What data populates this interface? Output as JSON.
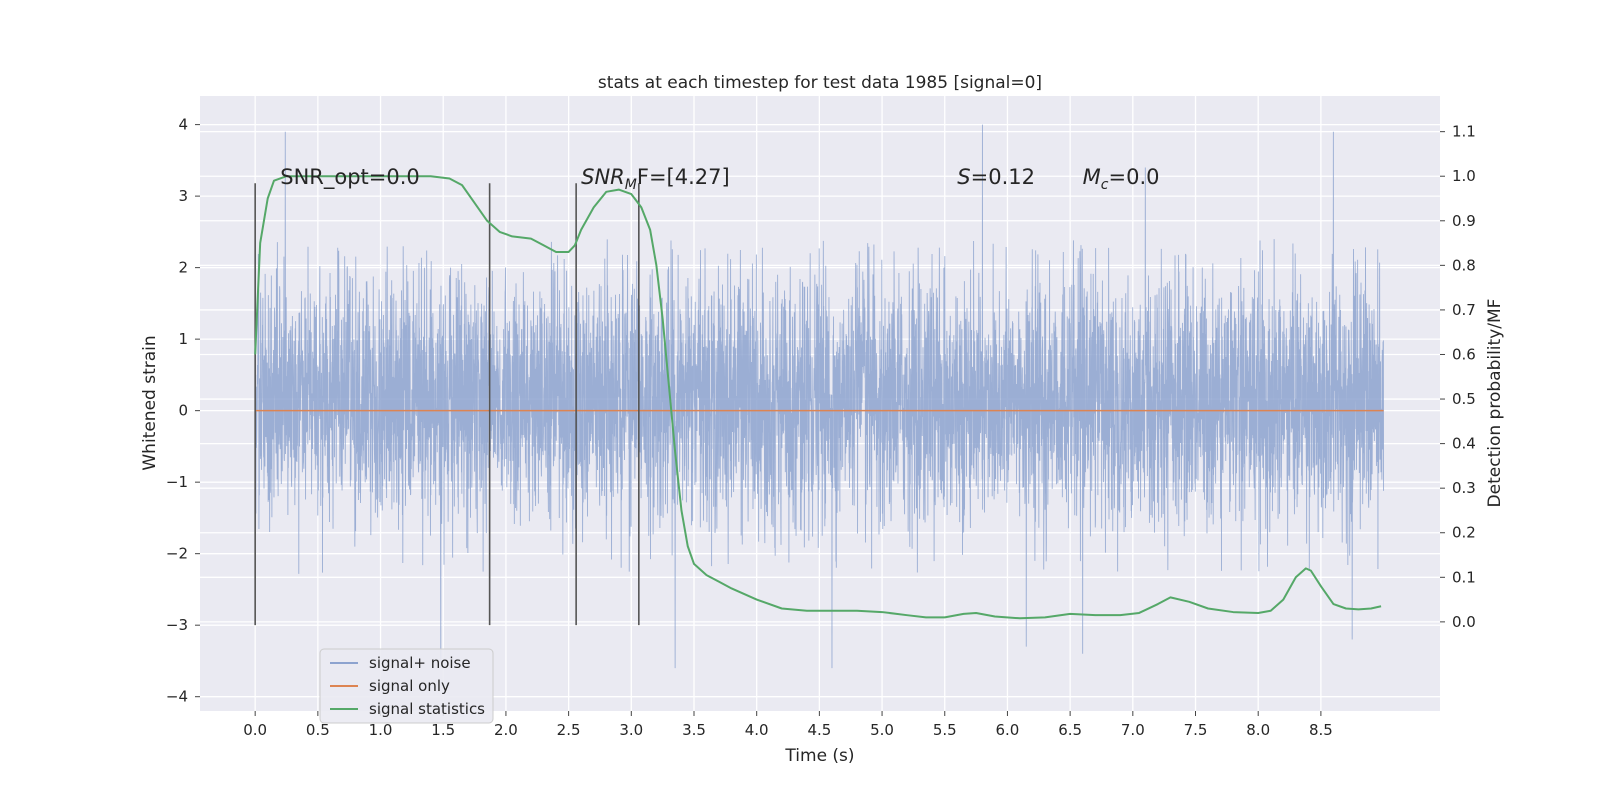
{
  "chart_data": {
    "type": "line",
    "title": "stats at each timestep for test data 1985 [signal=0]",
    "xlabel": "Time (s)",
    "ylabel": "Whitened strain",
    "y2label": "Detection probability/MF",
    "xlim": [
      -0.44,
      9.45
    ],
    "ylim": [
      -4.2,
      4.4
    ],
    "y2lim": [
      -0.2,
      1.18
    ],
    "xticks": [
      "0.0",
      "0.5",
      "1.0",
      "1.5",
      "2.0",
      "2.5",
      "3.0",
      "3.5",
      "4.0",
      "4.5",
      "5.0",
      "5.5",
      "6.0",
      "6.5",
      "7.0",
      "7.5",
      "8.0",
      "8.5"
    ],
    "yticks": [
      "4",
      "3",
      "2",
      "1",
      "0",
      "−1",
      "−2",
      "−3",
      "−4"
    ],
    "y2ticks": [
      "1.1",
      "1.0",
      "0.9",
      "0.8",
      "0.7",
      "0.6",
      "0.5",
      "0.4",
      "0.3",
      "0.2",
      "0.1",
      "0.0"
    ],
    "grid": true,
    "legend_position": "lower-left",
    "series": [
      {
        "name": "signal+ noise",
        "color": "#8da3cf",
        "duration_s": 9.0,
        "spread": [
          -2.3,
          2.4
        ],
        "peaks": [
          [
            0.24,
            3.9
          ],
          [
            1.48,
            -3.5
          ],
          [
            3.35,
            -3.6
          ],
          [
            4.6,
            -3.6
          ],
          [
            5.8,
            4.0
          ],
          [
            6.15,
            -3.3
          ],
          [
            6.6,
            -3.4
          ],
          [
            7.1,
            3.4
          ],
          [
            8.6,
            3.9
          ],
          [
            8.75,
            -3.2
          ]
        ]
      },
      {
        "name": "signal only",
        "color": "#dd8452",
        "x": [
          0,
          9.0
        ],
        "y": [
          0,
          0
        ]
      },
      {
        "name": "signal statistics",
        "color": "#55a868",
        "axis": "right",
        "x": [
          0.0,
          0.04,
          0.1,
          0.15,
          0.25,
          0.4,
          0.6,
          0.8,
          1.0,
          1.2,
          1.4,
          1.55,
          1.65,
          1.75,
          1.85,
          1.95,
          2.05,
          2.2,
          2.3,
          2.4,
          2.5,
          2.55,
          2.6,
          2.7,
          2.8,
          2.9,
          3.0,
          3.08,
          3.15,
          3.2,
          3.25,
          3.3,
          3.35,
          3.4,
          3.45,
          3.5,
          3.6,
          3.7,
          3.8,
          4.0,
          4.2,
          4.4,
          4.6,
          4.8,
          5.0,
          5.2,
          5.35,
          5.5,
          5.65,
          5.75,
          5.9,
          6.1,
          6.3,
          6.5,
          6.7,
          6.9,
          7.05,
          7.2,
          7.3,
          7.45,
          7.6,
          7.8,
          8.0,
          8.1,
          8.2,
          8.3,
          8.38,
          8.42,
          8.5,
          8.6,
          8.7,
          8.8,
          8.9,
          8.98
        ],
        "y": [
          0.6,
          0.85,
          0.95,
          0.99,
          1.0,
          1.0,
          1.0,
          1.0,
          1.0,
          1.0,
          1.0,
          0.995,
          0.98,
          0.94,
          0.9,
          0.875,
          0.865,
          0.86,
          0.845,
          0.83,
          0.83,
          0.845,
          0.88,
          0.93,
          0.965,
          0.97,
          0.96,
          0.93,
          0.88,
          0.8,
          0.68,
          0.53,
          0.38,
          0.25,
          0.17,
          0.13,
          0.105,
          0.09,
          0.075,
          0.05,
          0.03,
          0.025,
          0.025,
          0.025,
          0.022,
          0.015,
          0.01,
          0.01,
          0.018,
          0.02,
          0.012,
          0.008,
          0.01,
          0.018,
          0.015,
          0.015,
          0.02,
          0.04,
          0.055,
          0.045,
          0.03,
          0.022,
          0.02,
          0.025,
          0.05,
          0.1,
          0.12,
          0.115,
          0.08,
          0.04,
          0.03,
          0.028,
          0.03,
          0.035
        ]
      }
    ],
    "vertical_lines": [
      {
        "x": 0.0,
        "y_range": [
          -3.0,
          3.18
        ]
      },
      {
        "x": 1.87,
        "y_range": [
          -3.0,
          3.18
        ]
      },
      {
        "x": 2.56,
        "y_range": [
          -3.0,
          3.18
        ]
      },
      {
        "x": 3.06,
        "y_range": [
          -3.0,
          3.18
        ]
      }
    ],
    "annotations": [
      {
        "text": "SNR_opt=0.0",
        "x": 0.2,
        "y": 3.18
      },
      {
        "main": "SNR",
        "sub": "M",
        "rest": "F=[4.27]",
        "x": 2.6,
        "y": 3.18
      },
      {
        "main": "S",
        "sub": "",
        "rest": "=0.12",
        "x": 5.6,
        "y": 3.18
      },
      {
        "main": "M",
        "sub": "c",
        "rest": "=0.0",
        "x": 6.6,
        "y": 3.18
      }
    ]
  }
}
